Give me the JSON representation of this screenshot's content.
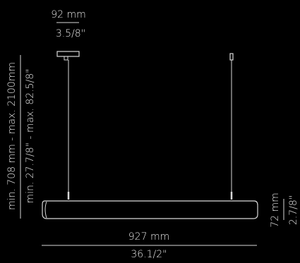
{
  "dimensions": {
    "canopy_width_mm": "92 mm",
    "canopy_width_in": "3.5/8\"",
    "height_range_mm": "min. 708 mm - max. 2100mm",
    "height_range_in": "min. 27.7/8\" - max. 82.5/8\"",
    "body_height_mm": "72 mm",
    "body_height_in": "2.7/8\"",
    "length_mm": "927 mm",
    "length_in": "36.1/2\""
  },
  "colors": {
    "background": "#000000",
    "line": "#d9d9d9",
    "text": "#e6e6e6"
  }
}
